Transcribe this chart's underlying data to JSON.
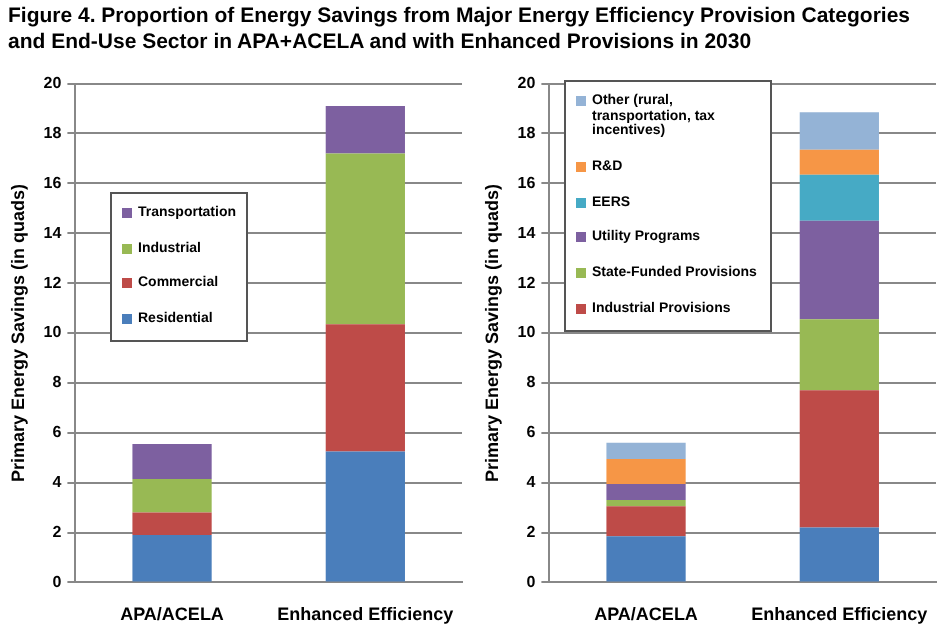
{
  "chart_data": [
    {
      "type": "bar",
      "title": "Figure 4. Proportion of Energy Savings from Major Energy Efficiency Provision Categories and End-Use Sector in APA+ACELA and with Enhanced Provisions in 2030",
      "ylabel": "Primary Energy Savings (in quads)",
      "categories": [
        "APA/ACELA",
        "Enhanced Efficiency"
      ],
      "stacked": true,
      "ylim": [
        0,
        20
      ],
      "yticks": [
        0,
        2,
        4,
        6,
        8,
        10,
        12,
        14,
        16,
        18,
        20
      ],
      "grid": "y",
      "legend": "left",
      "series": [
        {
          "name": "Residential",
          "color": "#4a7ebb",
          "values": [
            1.9,
            5.25
          ]
        },
        {
          "name": "Commercial",
          "color": "#be4b48",
          "values": [
            0.9,
            5.1
          ]
        },
        {
          "name": "Industrial",
          "color": "#98b954",
          "values": [
            1.35,
            6.85
          ]
        },
        {
          "name": "Transportation",
          "color": "#7d60a0",
          "values": [
            1.4,
            1.9
          ]
        }
      ]
    },
    {
      "type": "bar",
      "ylabel": "Primary Energy Savings (in quads)",
      "categories": [
        "APA/ACELA",
        "Enhanced Efficiency"
      ],
      "stacked": true,
      "ylim": [
        0,
        20
      ],
      "yticks": [
        0,
        2,
        4,
        6,
        8,
        10,
        12,
        14,
        16,
        18,
        20
      ],
      "grid": "y",
      "legend": "top left",
      "series": [
        {
          "color": "#4a7ebb",
          "values": [
            1.85,
            2.2
          ]
        },
        {
          "name": "Industrial Provisions",
          "color": "#be4b48",
          "values": [
            1.2,
            5.5
          ]
        },
        {
          "name": "State-Funded Provisions",
          "color": "#98b954",
          "values": [
            0.25,
            2.85
          ]
        },
        {
          "name": "Utility Programs",
          "color": "#7d60a0",
          "values": [
            0.65,
            3.95
          ]
        },
        {
          "name": "EERS",
          "color": "#46aac5",
          "values": [
            0,
            1.85
          ]
        },
        {
          "name": "R&D",
          "color": "#f69646",
          "values": [
            1.0,
            1.0
          ]
        },
        {
          "name": "Other (rural, transportation, tax incentives)",
          "color": "#94b3d6",
          "values": [
            0.65,
            1.5
          ]
        }
      ]
    }
  ]
}
